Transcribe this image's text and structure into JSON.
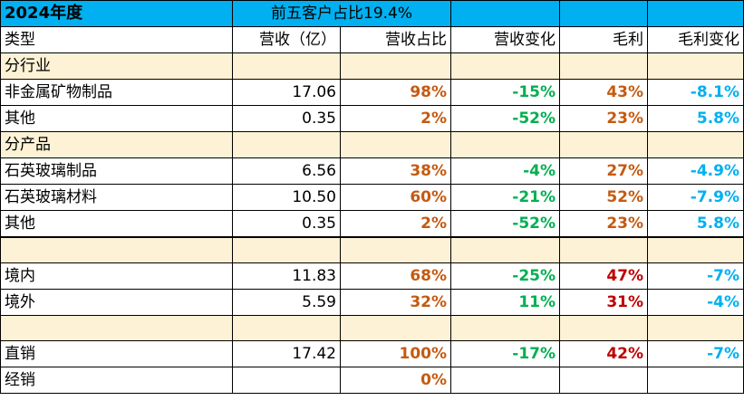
{
  "header": {
    "title": "2024年度",
    "subtitle": "前五客户占比19.4%"
  },
  "columns": [
    "类型",
    "营收（亿）",
    "营收占比",
    "营收变化",
    "毛利",
    "毛利变化"
  ],
  "sections": {
    "industry": "分行业",
    "product": "分产品"
  },
  "rows": {
    "ind_1": {
      "name": "非金属矿物制品",
      "revenue": "17.06",
      "share": "98%",
      "rev_change": "-15%",
      "margin": "43%",
      "margin_change": "-8.1%"
    },
    "ind_2": {
      "name": "其他",
      "revenue": "0.35",
      "share": "2%",
      "rev_change": "-52%",
      "margin": "23%",
      "margin_change": "5.8%"
    },
    "prod_1": {
      "name": "石英玻璃制品",
      "revenue": "6.56",
      "share": "38%",
      "rev_change": "-4%",
      "margin": "27%",
      "margin_change": "-4.9%"
    },
    "prod_2": {
      "name": "石英玻璃材料",
      "revenue": "10.50",
      "share": "60%",
      "rev_change": "-21%",
      "margin": "52%",
      "margin_change": "-7.9%"
    },
    "prod_3": {
      "name": "其他",
      "revenue": "0.35",
      "share": "2%",
      "rev_change": "-52%",
      "margin": "23%",
      "margin_change": "5.8%"
    },
    "reg_1": {
      "name": "境内",
      "revenue": "11.83",
      "share": "68%",
      "rev_change": "-25%",
      "margin": "47%",
      "margin_change": "-7%"
    },
    "reg_2": {
      "name": "境外",
      "revenue": "5.59",
      "share": "32%",
      "rev_change": "11%",
      "margin": "31%",
      "margin_change": "-4%"
    },
    "ch_1": {
      "name": "直销",
      "revenue": "17.42",
      "share": "100%",
      "rev_change": "-17%",
      "margin": "42%",
      "margin_change": "-7%"
    },
    "ch_2": {
      "name": "经销",
      "revenue": "",
      "share": "0%",
      "rev_change": "",
      "margin": "",
      "margin_change": ""
    }
  },
  "colors": {
    "header_bg": "#00b0f0",
    "band_bg": "#fdf2d5",
    "share": "#c55a11",
    "change": "#00b050",
    "margin_region": "#c00000",
    "margin_change": "#00b0f0"
  }
}
